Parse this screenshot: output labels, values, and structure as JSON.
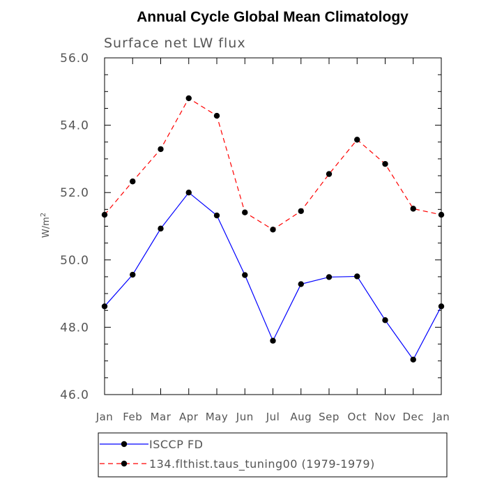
{
  "chart_data": {
    "type": "line",
    "title": "Annual Cycle Global Mean Climatology",
    "subtitle": "Surface net LW flux",
    "xlabel": "",
    "ylabel_base": "W/m",
    "ylabel_exp": "2",
    "categories": [
      "Jan",
      "Feb",
      "Mar",
      "Apr",
      "May",
      "Jun",
      "Jul",
      "Aug",
      "Sep",
      "Oct",
      "Nov",
      "Dec",
      "Jan"
    ],
    "ylim": [
      46.0,
      56.0
    ],
    "yticks": [
      "46.0",
      "48.0",
      "50.0",
      "52.0",
      "54.0",
      "56.0"
    ],
    "grid": false,
    "legend_position": "bottom",
    "series": [
      {
        "name": "ISCCP FD",
        "color": "#0000ff",
        "dash": "solid",
        "values": [
          48.62,
          49.56,
          50.93,
          52.0,
          51.32,
          49.55,
          47.6,
          49.28,
          49.49,
          49.51,
          48.21,
          47.04,
          48.62
        ]
      },
      {
        "name": "134.flthist.taus_tuning00 (1979-1979)",
        "color": "#ff0000",
        "dash": "dashed",
        "values": [
          51.34,
          52.33,
          53.29,
          54.8,
          54.28,
          51.41,
          50.9,
          51.45,
          52.55,
          53.57,
          52.85,
          51.52,
          51.34
        ]
      }
    ]
  }
}
